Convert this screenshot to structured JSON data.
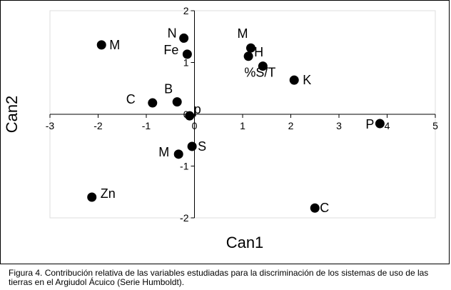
{
  "chart_data": {
    "type": "scatter",
    "xlabel": "Can1",
    "ylabel": "Can2",
    "xlim": [
      -3,
      5
    ],
    "ylim": [
      -2,
      2
    ],
    "x_ticks": [
      "-3",
      "-2",
      "-1",
      "0",
      "1",
      "2",
      "3",
      "4",
      "5"
    ],
    "y_ticks": [
      "2",
      "1",
      "0",
      "-1",
      "-2"
    ],
    "grid": false,
    "points": [
      {
        "label": "M",
        "x": -1.93,
        "y": 1.34
      },
      {
        "label": "N",
        "x": -0.22,
        "y": 1.47
      },
      {
        "label": "Fe",
        "x": -0.15,
        "y": 1.16
      },
      {
        "label": "M",
        "x": 1.17,
        "y": 1.28
      },
      {
        "label": "H",
        "x": 1.12,
        "y": 1.12
      },
      {
        "label": "%S/T",
        "x": 1.42,
        "y": 0.93
      },
      {
        "label": "K",
        "x": 2.07,
        "y": 0.66
      },
      {
        "label": "C",
        "x": -0.87,
        "y": 0.22
      },
      {
        "label": "B",
        "x": -0.36,
        "y": 0.24
      },
      {
        "label": "p",
        "x": -0.1,
        "y": -0.03
      },
      {
        "label": "P",
        "x": 3.85,
        "y": -0.18
      },
      {
        "label": "S",
        "x": -0.05,
        "y": -0.62
      },
      {
        "label": "M",
        "x": -0.33,
        "y": -0.77
      },
      {
        "label": "Zn",
        "x": -2.13,
        "y": -1.6
      },
      {
        "label": "C",
        "x": 2.5,
        "y": -1.81
      }
    ]
  },
  "caption": {
    "text": "Figura 4. Contribución relativa de las variables estudiadas para la discriminación de los sistemas de uso de las tierras en el Argiudol Ácuico (Serie Humboldt)."
  }
}
